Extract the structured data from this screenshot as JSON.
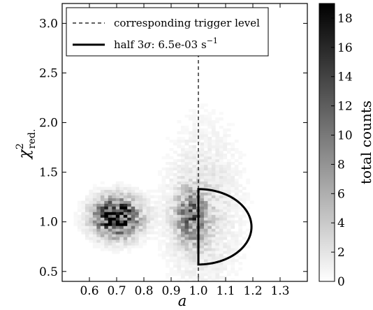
{
  "chart_data": {
    "type": "heatmap",
    "xlabel": "a",
    "ylabel_main": "χ",
    "ylabel_sup": "2",
    "ylabel_sub": "red.",
    "xlim": [
      0.5,
      1.4
    ],
    "ylim": [
      0.4,
      3.2
    ],
    "x_ticks": [
      0.6,
      0.7,
      0.8,
      0.9,
      1.0,
      1.1,
      1.2,
      1.3
    ],
    "x_tick_labels": [
      "0.6",
      "0.7",
      "0.8",
      "0.9",
      "1.0",
      "1.1",
      "1.2",
      "1.3"
    ],
    "y_ticks": [
      0.5,
      1.0,
      1.5,
      2.0,
      2.5,
      3.0
    ],
    "y_tick_labels": [
      "0.5",
      "1.0",
      "1.5",
      "2.0",
      "2.5",
      "3.0"
    ],
    "colorbar": {
      "label": "total counts",
      "range": [
        0,
        19
      ],
      "ticks": [
        0,
        2,
        4,
        6,
        8,
        10,
        12,
        14,
        16,
        18
      ],
      "tick_labels": [
        "0",
        "2",
        "4",
        "6",
        "8",
        "10",
        "12",
        "14",
        "16",
        "18"
      ]
    },
    "clusters": [
      {
        "cx": 0.7,
        "cy": 1.05,
        "sx": 0.055,
        "sy": 0.13,
        "peak": 18
      },
      {
        "cx": 0.975,
        "cy": 1.05,
        "sx": 0.04,
        "sy": 0.18,
        "peak": 9
      },
      {
        "cx": 1.02,
        "cy": 1.12,
        "sx": 0.09,
        "sy": 0.55,
        "peak": 2
      }
    ],
    "trigger_level_x": 1.0,
    "half_ellipse": {
      "x0": 1.0,
      "y_center": 0.95,
      "x_radius": 0.195,
      "y_radius": 0.38
    },
    "legend": {
      "position": "top-left",
      "dashed_label": "corresponding trigger level",
      "solid_label_prefix": "half 3",
      "solid_label_sigma": "σ",
      "solid_label_value": ": 6.5e-03 s",
      "solid_label_exp": "−1"
    }
  }
}
